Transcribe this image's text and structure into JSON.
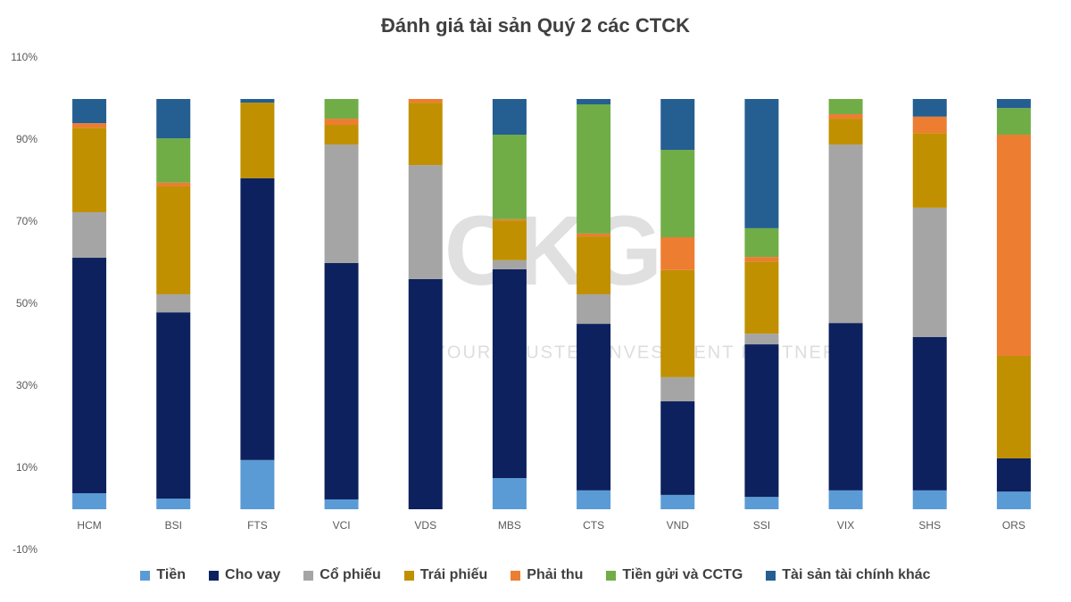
{
  "chart_data": {
    "type": "bar",
    "stacked": true,
    "title": "Đánh giá tài sản Quý 2 các CTCK",
    "watermark": "CKG",
    "watermark_subtitle": "YOUR TRUSTED INVESTMENT PARTNER",
    "categories": [
      "HCM",
      "BSI",
      "FTS",
      "VCI",
      "VDS",
      "MBS",
      "CTS",
      "VND",
      "SSI",
      "VIX",
      "SHS",
      "ORS"
    ],
    "series": [
      {
        "name": "Tiền",
        "color": "#5b9bd5",
        "values": [
          3.9,
          2.6,
          12,
          2.4,
          0,
          7.6,
          4.6,
          3.5,
          3,
          4.6,
          4.6,
          4.3
        ]
      },
      {
        "name": "Cho vay",
        "color": "#0c215e",
        "values": [
          57.4,
          45.4,
          68.7,
          57.6,
          56.1,
          50.9,
          40.6,
          22.8,
          37.2,
          40.8,
          37.4,
          8.1
        ]
      },
      {
        "name": "Cổ phiếu",
        "color": "#a5a5a5",
        "values": [
          11.1,
          4.4,
          0,
          28.9,
          27.8,
          2.2,
          7.2,
          5.9,
          2.6,
          43.5,
          31.5,
          0
        ]
      },
      {
        "name": "Trái phiếu",
        "color": "#c09000",
        "values": [
          20.6,
          26.3,
          18.4,
          4.8,
          15.2,
          9.7,
          14.1,
          26.1,
          17.6,
          6.3,
          18.2,
          25
        ]
      },
      {
        "name": "Phải thu",
        "color": "#ed7d31",
        "values": [
          1.1,
          0.9,
          0,
          1.5,
          0.9,
          0.3,
          0.7,
          8,
          1.1,
          1.1,
          4,
          53.9
        ]
      },
      {
        "name": "Tiền gửi và CCTG",
        "color": "#70ad47",
        "values": [
          0,
          10.8,
          0,
          4.8,
          0,
          20.6,
          31.5,
          21.3,
          7,
          3.7,
          0,
          6.5
        ]
      },
      {
        "name": "Tài sản tài chính khác",
        "color": "#255e91",
        "values": [
          5.9,
          9.6,
          0.9,
          0,
          0,
          8.7,
          1.3,
          12.4,
          31.5,
          0,
          4.3,
          2.2
        ]
      }
    ],
    "ylim": [
      -10,
      110
    ],
    "yticks": [
      {
        "value": -10,
        "label": "-10%"
      },
      {
        "value": 10,
        "label": "10%"
      },
      {
        "value": 30,
        "label": "30%"
      },
      {
        "value": 50,
        "label": "50%"
      },
      {
        "value": 70,
        "label": "70%"
      },
      {
        "value": 90,
        "label": "90%"
      },
      {
        "value": 110,
        "label": "110%"
      }
    ],
    "grid": false,
    "legend": "bottom"
  }
}
